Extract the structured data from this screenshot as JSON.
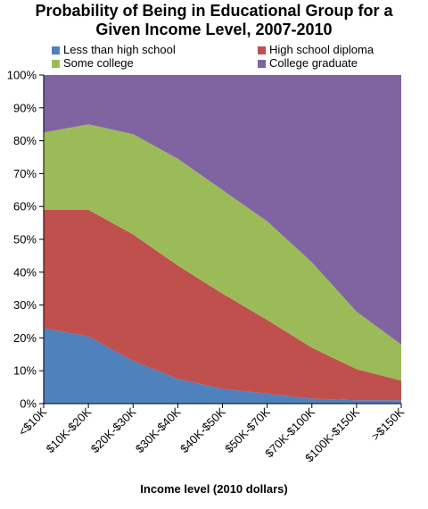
{
  "chart_data": {
    "type": "area",
    "stacked": true,
    "title_line1": "Probability of Being in Educational Group for a",
    "title_line2": "Given Income Level, 2007-2010",
    "xlabel": "Income level (2010 dollars)",
    "ylabel": "",
    "ylim": [
      0,
      100
    ],
    "y_ticks": [
      "0%",
      "10%",
      "20%",
      "30%",
      "40%",
      "50%",
      "60%",
      "70%",
      "80%",
      "90%",
      "100%"
    ],
    "categories": [
      "<$10K",
      "$10K-$20K",
      "$20K-$30K",
      "$30K-$40K",
      "$40K-$50K",
      "$50K-$70K",
      "$70K-$100K",
      "$100K-$150K",
      ">$150K"
    ],
    "legend_position": "top",
    "grid": false,
    "series": [
      {
        "name": "Less than high school",
        "color": "#4f81bd",
        "values": [
          23,
          20.5,
          13,
          7.5,
          4.5,
          3,
          1.5,
          1,
          1
        ]
      },
      {
        "name": "High school diploma",
        "color": "#c0504d",
        "values": [
          36,
          38.5,
          38.5,
          34.5,
          29,
          22.5,
          15.5,
          9.5,
          6
        ]
      },
      {
        "name": "Some college",
        "color": "#9bbb59",
        "values": [
          23.5,
          26,
          30.5,
          32.5,
          31.5,
          30,
          26,
          17.5,
          11
        ]
      },
      {
        "name": "College graduate",
        "color": "#8064a2",
        "values": [
          17.5,
          15,
          18,
          25.5,
          35,
          44.5,
          57,
          72,
          82
        ]
      }
    ]
  }
}
